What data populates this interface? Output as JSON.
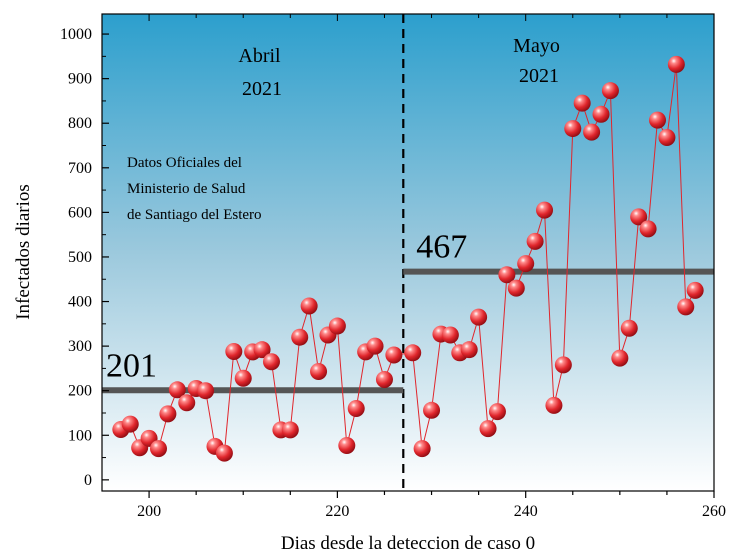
{
  "chart_data": {
    "type": "line",
    "title": "",
    "xlabel": "Dias desde la deteccion de caso 0",
    "ylabel": "Infectados diarios",
    "xlim": [
      195,
      260
    ],
    "ylim": [
      -25,
      1045
    ],
    "x_ticks": [
      200,
      220,
      240,
      260
    ],
    "y_ticks": [
      0,
      100,
      200,
      300,
      400,
      500,
      600,
      700,
      800,
      900,
      1000
    ],
    "grid": false,
    "series": [
      {
        "color": "#e0262c",
        "x": [
          197,
          198,
          199,
          200,
          201,
          202,
          203,
          204,
          205,
          206,
          207,
          208,
          209,
          210,
          211,
          212,
          213,
          214,
          215,
          216,
          217,
          218,
          219,
          220,
          221,
          222,
          223,
          224,
          225,
          226,
          228,
          229,
          230,
          231,
          232,
          233,
          234,
          235,
          236,
          237,
          238,
          239,
          240,
          241,
          242,
          243,
          244,
          245,
          246,
          247,
          248,
          249,
          250,
          251,
          252,
          253,
          254,
          255,
          256,
          257,
          258
        ],
        "y": [
          113,
          125,
          72,
          93,
          70,
          148,
          202,
          173,
          205,
          200,
          75,
          60,
          288,
          228,
          287,
          292,
          265,
          112,
          112,
          320,
          390,
          243,
          325,
          345,
          77,
          160,
          287,
          300,
          225,
          280,
          285,
          70,
          156,
          327,
          325,
          285,
          292,
          365,
          115,
          153,
          460,
          430,
          485,
          535,
          605,
          167,
          258,
          788,
          845,
          780,
          820,
          873,
          273,
          340,
          590,
          563,
          807,
          768,
          932,
          388,
          425
        ]
      }
    ],
    "mean_lines": [
      {
        "label": "201",
        "value": 201,
        "x_start": 195,
        "x_end": 227,
        "color": "#555555"
      },
      {
        "label": "467",
        "value": 467,
        "x_start": 227,
        "x_end": 260,
        "color": "#555555"
      }
    ],
    "divider_x": 227,
    "annotations": {
      "april": [
        "Abril",
        "2021"
      ],
      "may": [
        "Mayo",
        "2021"
      ],
      "source": [
        "Datos Oficiales del",
        "Ministerio de Salud",
        "de Santiago del Estero"
      ]
    },
    "background_gradient": [
      "#2c9fcd",
      "#ffffff"
    ]
  }
}
